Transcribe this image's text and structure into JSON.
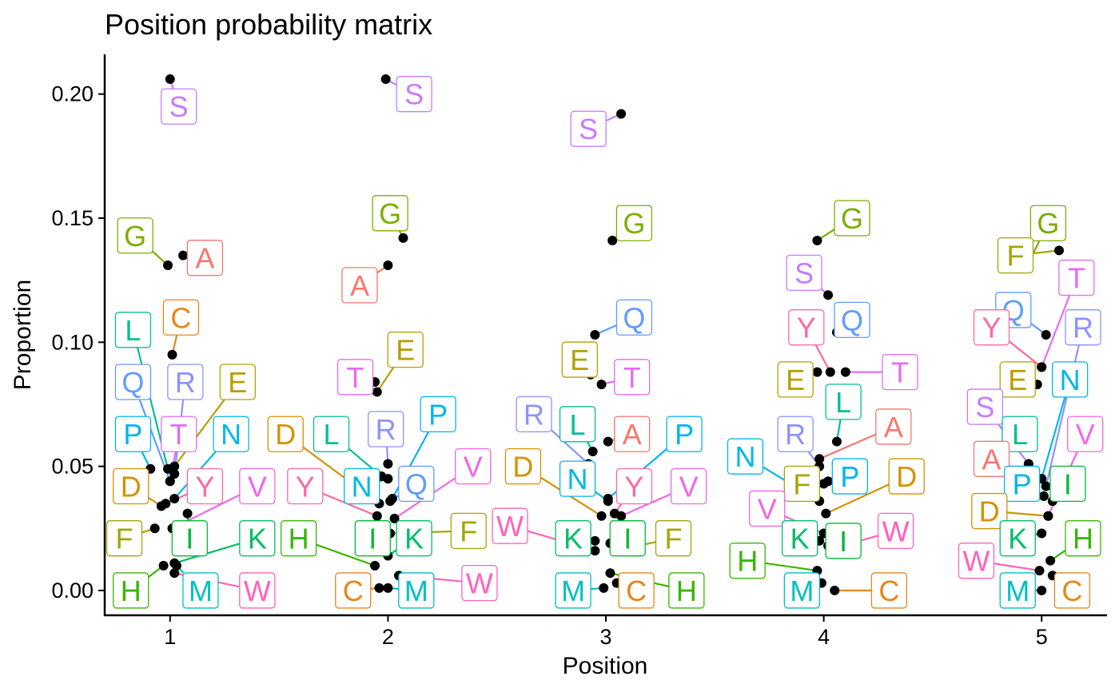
{
  "chart_data": {
    "type": "scatter",
    "title": "Position probability matrix",
    "xlabel": "Position",
    "ylabel": "Proportion",
    "xlim": [
      0.7,
      5.3
    ],
    "ylim": [
      -0.01,
      0.216
    ],
    "x_ticks": [
      "1",
      "2",
      "3",
      "4",
      "5"
    ],
    "y_ticks": [
      "0.00",
      "0.05",
      "0.10",
      "0.15",
      "0.20"
    ],
    "legend": "none",
    "colors": {
      "A": "#F8766D",
      "C": "#E7861B",
      "D": "#D39200",
      "E": "#B69E00",
      "F": "#A3A500",
      "G": "#7CAE00",
      "H": "#39B600",
      "I": "#00BA38",
      "K": "#00BE67",
      "L": "#00BF96",
      "M": "#00BFC4",
      "N": "#00B8E7",
      "P": "#00B4F0",
      "Q": "#619CFF",
      "R": "#8B93FF",
      "S": "#C77CFF",
      "T": "#E76BF3",
      "V": "#F166E8",
      "W": "#FF62BC",
      "Y": "#FF67A4"
    },
    "points": [
      {
        "aa": "S",
        "pos": 1,
        "x": 1.0,
        "y": 0.206,
        "lx": 1.04,
        "ly": 0.195
      },
      {
        "aa": "G",
        "pos": 1,
        "x": 0.99,
        "y": 0.131,
        "lx": 0.84,
        "ly": 0.143
      },
      {
        "aa": "A",
        "pos": 1,
        "x": 1.06,
        "y": 0.135,
        "lx": 1.16,
        "ly": 0.134
      },
      {
        "aa": "C",
        "pos": 1,
        "x": 1.01,
        "y": 0.095,
        "lx": 1.05,
        "ly": 0.11
      },
      {
        "aa": "L",
        "pos": 1,
        "x": 0.99,
        "y": 0.049,
        "lx": 0.83,
        "ly": 0.105
      },
      {
        "aa": "Q",
        "pos": 1,
        "x": 1.0,
        "y": 0.044,
        "lx": 0.83,
        "ly": 0.084
      },
      {
        "aa": "R",
        "pos": 1,
        "x": 1.02,
        "y": 0.047,
        "lx": 1.07,
        "ly": 0.084
      },
      {
        "aa": "E",
        "pos": 1,
        "x": 1.02,
        "y": 0.05,
        "lx": 1.31,
        "ly": 0.084
      },
      {
        "aa": "P",
        "pos": 1,
        "x": 0.91,
        "y": 0.049,
        "lx": 0.83,
        "ly": 0.063
      },
      {
        "aa": "T",
        "pos": 1,
        "x": 1.0,
        "y": 0.044,
        "lx": 1.04,
        "ly": 0.063
      },
      {
        "aa": "N",
        "pos": 1,
        "x": 1.02,
        "y": 0.037,
        "lx": 1.28,
        "ly": 0.063
      },
      {
        "aa": "D",
        "pos": 1,
        "x": 0.96,
        "y": 0.034,
        "lx": 0.82,
        "ly": 0.042
      },
      {
        "aa": "Y",
        "pos": 1,
        "x": 0.98,
        "y": 0.035,
        "lx": 1.16,
        "ly": 0.042
      },
      {
        "aa": "V",
        "pos": 1,
        "x": 1.01,
        "y": 0.025,
        "lx": 1.4,
        "ly": 0.042
      },
      {
        "aa": "F",
        "pos": 1,
        "x": 0.93,
        "y": 0.025,
        "lx": 0.79,
        "ly": 0.021
      },
      {
        "aa": "I",
        "pos": 1,
        "x": 1.08,
        "y": 0.031,
        "lx": 1.09,
        "ly": 0.021
      },
      {
        "aa": "K",
        "pos": 1,
        "x": 1.02,
        "y": 0.011,
        "lx": 1.4,
        "ly": 0.021
      },
      {
        "aa": "H",
        "pos": 1,
        "x": 0.97,
        "y": 0.01,
        "lx": 0.82,
        "ly": 0.0
      },
      {
        "aa": "M",
        "pos": 1,
        "x": 1.03,
        "y": 0.01,
        "lx": 1.14,
        "ly": 0.0
      },
      {
        "aa": "W",
        "pos": 1,
        "x": 1.02,
        "y": 0.007,
        "lx": 1.4,
        "ly": 0.0
      },
      {
        "aa": "S",
        "pos": 2,
        "x": 1.99,
        "y": 0.206,
        "lx": 2.12,
        "ly": 0.2
      },
      {
        "aa": "G",
        "pos": 2,
        "x": 2.07,
        "y": 0.142,
        "lx": 2.01,
        "ly": 0.152
      },
      {
        "aa": "A",
        "pos": 2,
        "x": 2.0,
        "y": 0.131,
        "lx": 1.87,
        "ly": 0.123
      },
      {
        "aa": "E",
        "pos": 2,
        "x": 1.95,
        "y": 0.08,
        "lx": 2.08,
        "ly": 0.097
      },
      {
        "aa": "T",
        "pos": 2,
        "x": 1.94,
        "y": 0.084,
        "lx": 1.85,
        "ly": 0.086
      },
      {
        "aa": "P",
        "pos": 2,
        "x": 2.02,
        "y": 0.037,
        "lx": 2.23,
        "ly": 0.071
      },
      {
        "aa": "L",
        "pos": 2,
        "x": 1.97,
        "y": 0.046,
        "lx": 1.74,
        "ly": 0.063
      },
      {
        "aa": "R",
        "pos": 2,
        "x": 2.0,
        "y": 0.051,
        "lx": 1.99,
        "ly": 0.065
      },
      {
        "aa": "D",
        "pos": 2,
        "x": 1.96,
        "y": 0.035,
        "lx": 1.53,
        "ly": 0.063
      },
      {
        "aa": "N",
        "pos": 2,
        "x": 2.0,
        "y": 0.045,
        "lx": 1.88,
        "ly": 0.042
      },
      {
        "aa": "Q",
        "pos": 2,
        "x": 2.01,
        "y": 0.036,
        "lx": 2.13,
        "ly": 0.043
      },
      {
        "aa": "V",
        "pos": 2,
        "x": 2.03,
        "y": 0.029,
        "lx": 2.39,
        "ly": 0.05
      },
      {
        "aa": "Y",
        "pos": 2,
        "x": 1.95,
        "y": 0.03,
        "lx": 1.62,
        "ly": 0.042
      },
      {
        "aa": "H",
        "pos": 2,
        "x": 1.94,
        "y": 0.01,
        "lx": 1.59,
        "ly": 0.021
      },
      {
        "aa": "I",
        "pos": 2,
        "x": 1.97,
        "y": 0.016,
        "lx": 1.93,
        "ly": 0.021
      },
      {
        "aa": "K",
        "pos": 2,
        "x": 2.0,
        "y": 0.014,
        "lx": 2.12,
        "ly": 0.021
      },
      {
        "aa": "F",
        "pos": 2,
        "x": 2.01,
        "y": 0.023,
        "lx": 2.37,
        "ly": 0.024
      },
      {
        "aa": "C",
        "pos": 2,
        "x": 1.96,
        "y": 0.001,
        "lx": 1.84,
        "ly": 0.0
      },
      {
        "aa": "M",
        "pos": 2,
        "x": 2.0,
        "y": 0.001,
        "lx": 2.13,
        "ly": 0.0
      },
      {
        "aa": "W",
        "pos": 2,
        "x": 2.05,
        "y": 0.006,
        "lx": 2.42,
        "ly": 0.003
      },
      {
        "aa": "S",
        "pos": 3,
        "x": 3.07,
        "y": 0.192,
        "lx": 2.92,
        "ly": 0.186
      },
      {
        "aa": "G",
        "pos": 3,
        "x": 3.03,
        "y": 0.141,
        "lx": 3.13,
        "ly": 0.148
      },
      {
        "aa": "Q",
        "pos": 3,
        "x": 2.95,
        "y": 0.103,
        "lx": 3.13,
        "ly": 0.11
      },
      {
        "aa": "E",
        "pos": 3,
        "x": 2.93,
        "y": 0.087,
        "lx": 2.88,
        "ly": 0.093
      },
      {
        "aa": "T",
        "pos": 3,
        "x": 2.98,
        "y": 0.083,
        "lx": 3.12,
        "ly": 0.086
      },
      {
        "aa": "R",
        "pos": 3,
        "x": 2.92,
        "y": 0.051,
        "lx": 2.67,
        "ly": 0.071
      },
      {
        "aa": "L",
        "pos": 3,
        "x": 2.94,
        "y": 0.056,
        "lx": 2.87,
        "ly": 0.067
      },
      {
        "aa": "A",
        "pos": 3,
        "x": 3.01,
        "y": 0.06,
        "lx": 3.12,
        "ly": 0.063
      },
      {
        "aa": "P",
        "pos": 3,
        "x": 3.01,
        "y": 0.037,
        "lx": 3.36,
        "ly": 0.063
      },
      {
        "aa": "D",
        "pos": 3,
        "x": 2.98,
        "y": 0.03,
        "lx": 2.62,
        "ly": 0.05
      },
      {
        "aa": "N",
        "pos": 3,
        "x": 3.01,
        "y": 0.036,
        "lx": 2.87,
        "ly": 0.045
      },
      {
        "aa": "Y",
        "pos": 3,
        "x": 3.04,
        "y": 0.031,
        "lx": 3.13,
        "ly": 0.042
      },
      {
        "aa": "V",
        "pos": 3,
        "x": 3.07,
        "y": 0.03,
        "lx": 3.38,
        "ly": 0.042
      },
      {
        "aa": "W",
        "pos": 3,
        "x": 2.95,
        "y": 0.016,
        "lx": 2.56,
        "ly": 0.026
      },
      {
        "aa": "K",
        "pos": 3,
        "x": 2.95,
        "y": 0.02,
        "lx": 2.85,
        "ly": 0.021
      },
      {
        "aa": "I",
        "pos": 3,
        "x": 3.02,
        "y": 0.019,
        "lx": 3.1,
        "ly": 0.021
      },
      {
        "aa": "F",
        "pos": 3,
        "x": 3.04,
        "y": 0.016,
        "lx": 3.31,
        "ly": 0.021
      },
      {
        "aa": "M",
        "pos": 3,
        "x": 2.99,
        "y": 0.001,
        "lx": 2.85,
        "ly": 0.0
      },
      {
        "aa": "C",
        "pos": 3,
        "x": 3.05,
        "y": 0.003,
        "lx": 3.14,
        "ly": 0.0
      },
      {
        "aa": "H",
        "pos": 3,
        "x": 3.02,
        "y": 0.007,
        "lx": 3.37,
        "ly": 0.0
      },
      {
        "aa": "G",
        "pos": 4,
        "x": 3.97,
        "y": 0.141,
        "lx": 4.13,
        "ly": 0.15
      },
      {
        "aa": "S",
        "pos": 4,
        "x": 4.02,
        "y": 0.119,
        "lx": 3.91,
        "ly": 0.128
      },
      {
        "aa": "Q",
        "pos": 4,
        "x": 4.06,
        "y": 0.104,
        "lx": 4.13,
        "ly": 0.109
      },
      {
        "aa": "Y",
        "pos": 4,
        "x": 4.03,
        "y": 0.088,
        "lx": 3.92,
        "ly": 0.106
      },
      {
        "aa": "T",
        "pos": 4,
        "x": 4.1,
        "y": 0.088,
        "lx": 4.35,
        "ly": 0.088
      },
      {
        "aa": "E",
        "pos": 4,
        "x": 3.97,
        "y": 0.088,
        "lx": 3.87,
        "ly": 0.085
      },
      {
        "aa": "L",
        "pos": 4,
        "x": 4.06,
        "y": 0.06,
        "lx": 4.09,
        "ly": 0.076
      },
      {
        "aa": "A",
        "pos": 4,
        "x": 3.98,
        "y": 0.053,
        "lx": 4.32,
        "ly": 0.066
      },
      {
        "aa": "R",
        "pos": 4,
        "x": 3.98,
        "y": 0.05,
        "lx": 3.87,
        "ly": 0.063
      },
      {
        "aa": "N",
        "pos": 4,
        "x": 3.98,
        "y": 0.036,
        "lx": 3.64,
        "ly": 0.054
      },
      {
        "aa": "F",
        "pos": 4,
        "x": 4.0,
        "y": 0.043,
        "lx": 3.9,
        "ly": 0.043
      },
      {
        "aa": "P",
        "pos": 4,
        "x": 4.02,
        "y": 0.044,
        "lx": 4.12,
        "ly": 0.046
      },
      {
        "aa": "D",
        "pos": 4,
        "x": 4.01,
        "y": 0.031,
        "lx": 4.38,
        "ly": 0.046
      },
      {
        "aa": "V",
        "pos": 4,
        "x": 4.0,
        "y": 0.023,
        "lx": 3.74,
        "ly": 0.033
      },
      {
        "aa": "W",
        "pos": 4,
        "x": 4.04,
        "y": 0.017,
        "lx": 4.33,
        "ly": 0.024
      },
      {
        "aa": "K",
        "pos": 4,
        "x": 3.98,
        "y": 0.02,
        "lx": 3.89,
        "ly": 0.021
      },
      {
        "aa": "I",
        "pos": 4,
        "x": 4.02,
        "y": 0.018,
        "lx": 4.09,
        "ly": 0.02
      },
      {
        "aa": "H",
        "pos": 4,
        "x": 3.97,
        "y": 0.008,
        "lx": 3.65,
        "ly": 0.012
      },
      {
        "aa": "M",
        "pos": 4,
        "x": 3.99,
        "y": 0.003,
        "lx": 3.9,
        "ly": 0.0
      },
      {
        "aa": "C",
        "pos": 4,
        "x": 4.05,
        "y": 0.0,
        "lx": 4.3,
        "ly": 0.0
      },
      {
        "aa": "G",
        "pos": 5,
        "x": 4.94,
        "y": 0.132,
        "lx": 5.03,
        "ly": 0.148
      },
      {
        "aa": "F",
        "pos": 5,
        "x": 5.08,
        "y": 0.137,
        "lx": 4.88,
        "ly": 0.135
      },
      {
        "aa": "T",
        "pos": 5,
        "x": 5.0,
        "y": 0.09,
        "lx": 5.16,
        "ly": 0.126
      },
      {
        "aa": "Q",
        "pos": 5,
        "x": 5.02,
        "y": 0.103,
        "lx": 4.87,
        "ly": 0.113
      },
      {
        "aa": "R",
        "pos": 5,
        "x": 5.02,
        "y": 0.042,
        "lx": 5.19,
        "ly": 0.106
      },
      {
        "aa": "Y",
        "pos": 5,
        "x": 5.0,
        "y": 0.09,
        "lx": 4.77,
        "ly": 0.106
      },
      {
        "aa": "E",
        "pos": 5,
        "x": 4.98,
        "y": 0.083,
        "lx": 4.89,
        "ly": 0.085
      },
      {
        "aa": "N",
        "pos": 5,
        "x": 5.0,
        "y": 0.045,
        "lx": 5.13,
        "ly": 0.085
      },
      {
        "aa": "S",
        "pos": 5,
        "x": 4.94,
        "y": 0.051,
        "lx": 4.74,
        "ly": 0.074
      },
      {
        "aa": "L",
        "pos": 5,
        "x": 4.94,
        "y": 0.058,
        "lx": 4.9,
        "ly": 0.063
      },
      {
        "aa": "V",
        "pos": 5,
        "x": 5.03,
        "y": 0.03,
        "lx": 5.2,
        "ly": 0.063
      },
      {
        "aa": "A",
        "pos": 5,
        "x": 4.97,
        "y": 0.046,
        "lx": 4.77,
        "ly": 0.053
      },
      {
        "aa": "P",
        "pos": 5,
        "x": 5.01,
        "y": 0.038,
        "lx": 4.91,
        "ly": 0.043
      },
      {
        "aa": "I",
        "pos": 5,
        "x": 5.05,
        "y": 0.036,
        "lx": 5.12,
        "ly": 0.043
      },
      {
        "aa": "D",
        "pos": 5,
        "x": 5.03,
        "y": 0.03,
        "lx": 4.76,
        "ly": 0.032
      },
      {
        "aa": "K",
        "pos": 5,
        "x": 5.0,
        "y": 0.023,
        "lx": 4.89,
        "ly": 0.021
      },
      {
        "aa": "H",
        "pos": 5,
        "x": 5.04,
        "y": 0.012,
        "lx": 5.19,
        "ly": 0.021
      },
      {
        "aa": "W",
        "pos": 5,
        "x": 4.99,
        "y": 0.008,
        "lx": 4.7,
        "ly": 0.012
      },
      {
        "aa": "M",
        "pos": 5,
        "x": 5.0,
        "y": 0.0,
        "lx": 4.89,
        "ly": 0.0
      },
      {
        "aa": "C",
        "pos": 5,
        "x": 5.05,
        "y": 0.006,
        "lx": 5.14,
        "ly": 0.0
      }
    ]
  }
}
